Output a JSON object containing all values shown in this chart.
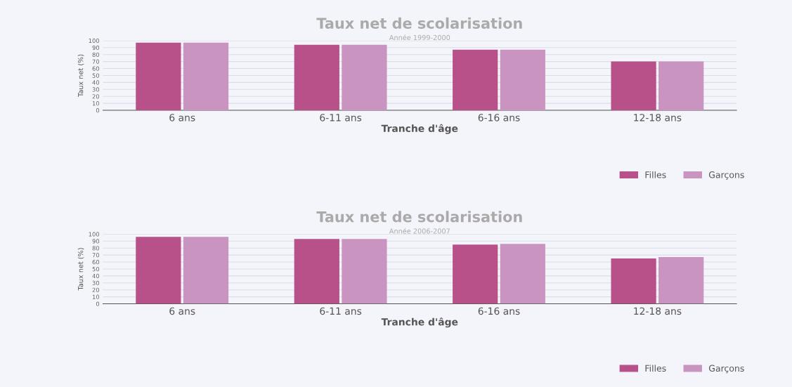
{
  "chart_data": [
    {
      "type": "bar",
      "title": "Taux net de scolarisation",
      "subtitle": "Année 1999-2000",
      "xlabel": "Tranche d'âge",
      "ylabel": "Taux net (%)",
      "categories": [
        "6 ans",
        "6-11 ans",
        "6-16 ans",
        "12-18 ans"
      ],
      "series": [
        {
          "name": "Filles",
          "color": "#b8508a",
          "values": [
            97,
            94,
            87,
            70
          ]
        },
        {
          "name": "Garçons",
          "color": "#c994c0",
          "values": [
            97,
            94,
            87,
            70
          ]
        }
      ],
      "ylim": [
        0,
        100
      ],
      "yticks": [
        0,
        10,
        20,
        30,
        40,
        50,
        60,
        70,
        80,
        90,
        100
      ],
      "grid": "y",
      "legend": "bottom right"
    },
    {
      "type": "bar",
      "title": "Taux net de scolarisation",
      "subtitle": "Année 2006-2007",
      "xlabel": "Tranche d'âge",
      "ylabel": "Taux net (%)",
      "categories": [
        "6 ans",
        "6-11 ans",
        "6-16 ans",
        "12-18 ans"
      ],
      "series": [
        {
          "name": "Filles",
          "color": "#b8508a",
          "values": [
            96,
            93,
            85,
            65
          ]
        },
        {
          "name": "Garçons",
          "color": "#c994c0",
          "values": [
            96,
            93,
            86,
            67
          ]
        }
      ],
      "ylim": [
        0,
        100
      ],
      "yticks": [
        0,
        10,
        20,
        30,
        40,
        50,
        60,
        70,
        80,
        90,
        100
      ],
      "grid": "y",
      "legend": "bottom right"
    }
  ]
}
